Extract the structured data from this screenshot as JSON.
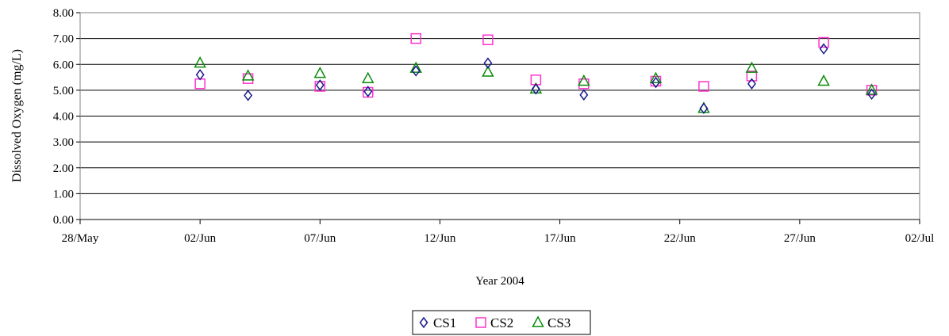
{
  "chart_data": {
    "type": "scatter",
    "title": "",
    "xlabel": "Year 2004",
    "ylabel": "Dissolved Oxygen (mg/L)",
    "x_axis_type": "date",
    "xlim": [
      "2004-05-28",
      "2004-07-02"
    ],
    "ylim": [
      0,
      8
    ],
    "y_ticks": [
      "0.00",
      "1.00",
      "2.00",
      "3.00",
      "4.00",
      "5.00",
      "6.00",
      "7.00",
      "8.00"
    ],
    "x_ticks": [
      {
        "date": "2004-05-28",
        "label": "28/May"
      },
      {
        "date": "2004-06-02",
        "label": "02/Jun"
      },
      {
        "date": "2004-06-07",
        "label": "07/Jun"
      },
      {
        "date": "2004-06-12",
        "label": "12/Jun"
      },
      {
        "date": "2004-06-17",
        "label": "17/Jun"
      },
      {
        "date": "2004-06-22",
        "label": "22/Jun"
      },
      {
        "date": "2004-06-27",
        "label": "27/Jun"
      },
      {
        "date": "2004-07-02",
        "label": "02/Jul"
      }
    ],
    "grid": {
      "horizontal": true,
      "vertical": false
    },
    "legend_position": "bottom-center",
    "series": [
      {
        "name": "CS1",
        "marker": "diamond",
        "color": "#1a1a8c",
        "points": [
          {
            "x": "2004-06-02",
            "y": 5.6
          },
          {
            "x": "2004-06-04",
            "y": 4.8
          },
          {
            "x": "2004-06-07",
            "y": 5.2
          },
          {
            "x": "2004-06-09",
            "y": 4.95
          },
          {
            "x": "2004-06-11",
            "y": 5.75
          },
          {
            "x": "2004-06-14",
            "y": 6.05
          },
          {
            "x": "2004-06-16",
            "y": 5.05
          },
          {
            "x": "2004-06-18",
            "y": 4.82
          },
          {
            "x": "2004-06-21",
            "y": 5.3
          },
          {
            "x": "2004-06-23",
            "y": 4.3
          },
          {
            "x": "2004-06-25",
            "y": 5.25
          },
          {
            "x": "2004-06-28",
            "y": 6.6
          },
          {
            "x": "2004-06-30",
            "y": 4.85
          }
        ]
      },
      {
        "name": "CS2",
        "marker": "square",
        "color": "#ff33cc",
        "points": [
          {
            "x": "2004-06-02",
            "y": 5.25
          },
          {
            "x": "2004-06-04",
            "y": 5.45
          },
          {
            "x": "2004-06-07",
            "y": 5.15
          },
          {
            "x": "2004-06-09",
            "y": 4.92
          },
          {
            "x": "2004-06-11",
            "y": 7.0
          },
          {
            "x": "2004-06-14",
            "y": 6.95
          },
          {
            "x": "2004-06-16",
            "y": 5.4
          },
          {
            "x": "2004-06-18",
            "y": 5.25
          },
          {
            "x": "2004-06-21",
            "y": 5.35
          },
          {
            "x": "2004-06-23",
            "y": 5.15
          },
          {
            "x": "2004-06-25",
            "y": 5.55
          },
          {
            "x": "2004-06-28",
            "y": 6.85
          },
          {
            "x": "2004-06-30",
            "y": 5.0
          }
        ]
      },
      {
        "name": "CS3",
        "marker": "triangle",
        "color": "#0a8a0a",
        "points": [
          {
            "x": "2004-06-02",
            "y": 6.05
          },
          {
            "x": "2004-06-04",
            "y": 5.55
          },
          {
            "x": "2004-06-07",
            "y": 5.65
          },
          {
            "x": "2004-06-09",
            "y": 5.45
          },
          {
            "x": "2004-06-11",
            "y": 5.85
          },
          {
            "x": "2004-06-14",
            "y": 5.7
          },
          {
            "x": "2004-06-16",
            "y": 5.05
          },
          {
            "x": "2004-06-18",
            "y": 5.35
          },
          {
            "x": "2004-06-21",
            "y": 5.45
          },
          {
            "x": "2004-06-23",
            "y": 4.3
          },
          {
            "x": "2004-06-25",
            "y": 5.85
          },
          {
            "x": "2004-06-28",
            "y": 5.35
          },
          {
            "x": "2004-06-30",
            "y": 5.0
          }
        ]
      }
    ]
  }
}
